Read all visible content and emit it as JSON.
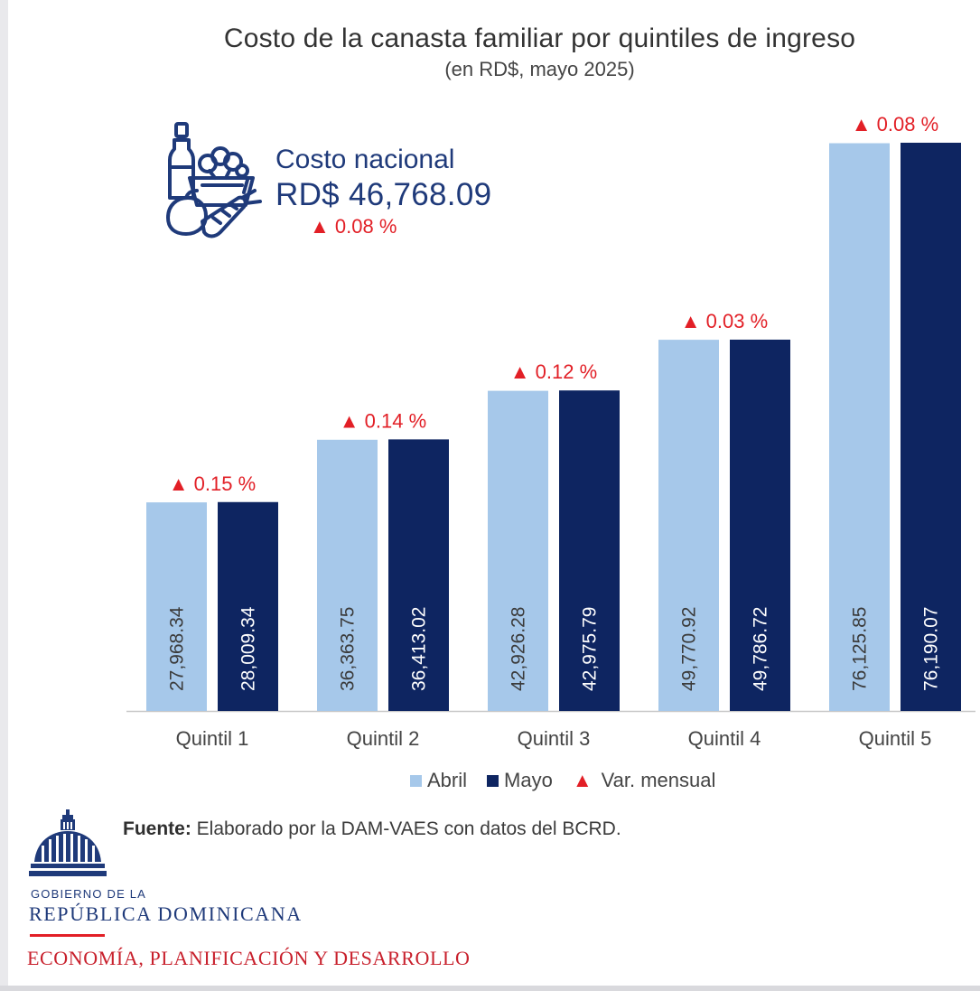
{
  "header": {
    "title": "Costo de la canasta familiar por quintiles de ingreso",
    "subtitle": "(en RD$, mayo 2025)"
  },
  "national": {
    "label": "Costo nacional",
    "value": "RD$ 46,768.09",
    "variation": "▲ 0.08 %",
    "icon": "grocery-basket-icon"
  },
  "chart_data": {
    "type": "bar",
    "categories": [
      "Quintil 1",
      "Quintil 2",
      "Quintil 3",
      "Quintil 4",
      "Quintil 5"
    ],
    "series": [
      {
        "name": "Abril",
        "color": "#a6c8ea",
        "label_color": "#3b3b3b",
        "values": [
          27968.34,
          36363.75,
          42926.28,
          49770.92,
          76125.85
        ],
        "labels": [
          "27,968.34",
          "36,363.75",
          "42,926.28",
          "49,770.92",
          "76,125.85"
        ]
      },
      {
        "name": "Mayo",
        "color": "#0e2561",
        "label_color": "#ffffff",
        "values": [
          28009.34,
          36413.02,
          42975.79,
          49786.72,
          76190.07
        ],
        "labels": [
          "28,009.34",
          "36,413.02",
          "42,975.79",
          "49,786.72",
          "76,190.07"
        ]
      }
    ],
    "variation_labels": [
      "▲ 0.15 %",
      "▲ 0.14 %",
      "▲ 0.12 %",
      "▲ 0.03 %",
      "▲ 0.08 %"
    ],
    "variation_color": "#e21f26",
    "ylim": [
      0,
      76190.07
    ],
    "grid": false,
    "legend_position": "bottom-center"
  },
  "legend": {
    "abril": "Abril",
    "mayo": "Mayo",
    "var": "Var. mensual"
  },
  "footer": {
    "source_label": "Fuente:",
    "source_text": " Elaborado por la DAM-VAES con datos del BCRD.",
    "gov_small": "GOBIERNO DE LA",
    "gov_big": "REPÚBLICA DOMINICANA",
    "ministry": "ECONOMÍA, PLANIFICACIÓN Y DESARROLLO",
    "logo_icon": "capitol-dome-icon"
  }
}
